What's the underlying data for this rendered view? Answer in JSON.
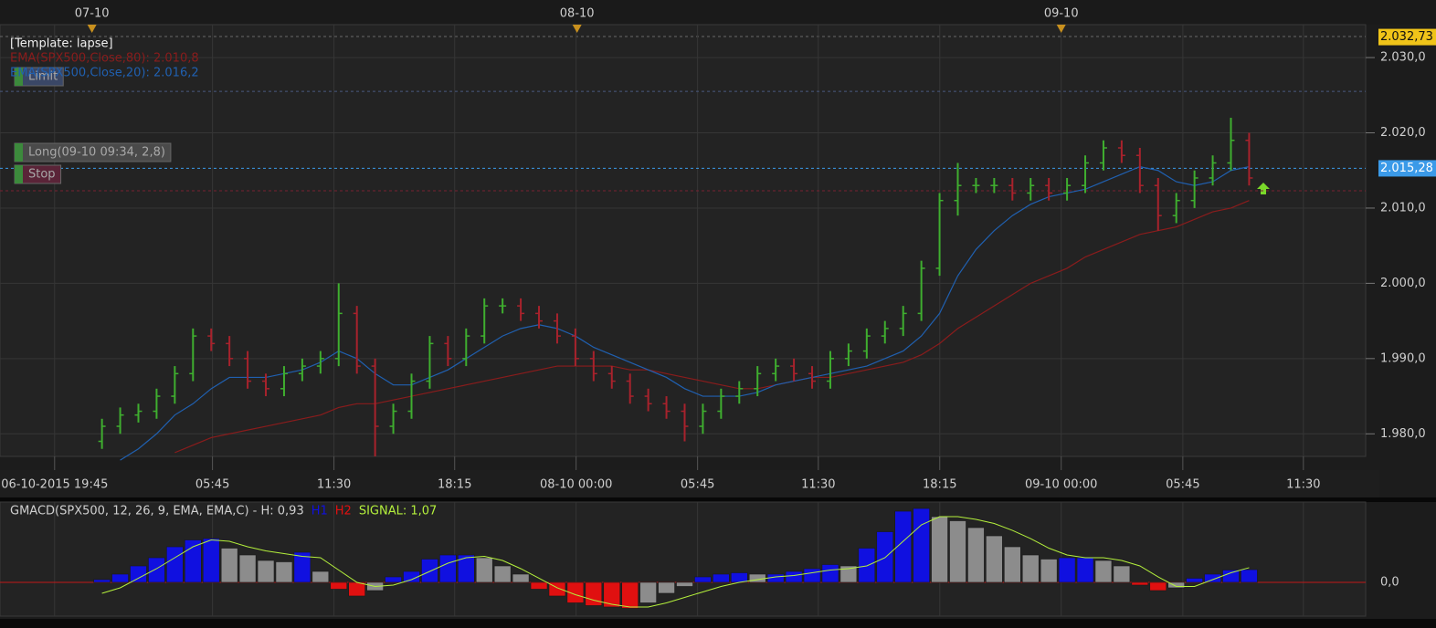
{
  "chart_data": [
    {
      "type": "ohlc",
      "title": "[Template: lapse]",
      "open": [
        1979,
        1981,
        1982.5,
        1983,
        1985,
        1988,
        1993,
        1992,
        1990,
        1987,
        1986,
        1988,
        1989,
        1990,
        1996,
        1989,
        1981,
        1983,
        1987,
        1992,
        1990,
        1993,
        1997,
        1997,
        1996,
        1995,
        1993,
        1990,
        1988,
        1987,
        1985,
        1984,
        1983,
        1981,
        1983,
        1985,
        1986,
        1988,
        1989,
        1988,
        1987,
        1990,
        1991,
        1993,
        1994,
        1996,
        2002,
        2011,
        2013,
        2013,
        2013,
        2012,
        2013,
        2012,
        2013,
        2016,
        2018,
        2017,
        2013,
        2009,
        2011,
        2014,
        2016,
        2019
      ],
      "high": [
        1982,
        1983.5,
        1984,
        1986,
        1989,
        1994,
        1994,
        1993,
        1991,
        1988,
        1989,
        1990,
        1991,
        2000,
        1997,
        1990,
        1984,
        1988,
        1993,
        1993,
        1994,
        1998,
        1998,
        1998,
        1997,
        1996,
        1994,
        1991,
        1989,
        1988,
        1986,
        1985,
        1984,
        1984,
        1986,
        1987,
        1989,
        1990,
        1990,
        1989,
        1991,
        1992,
        1994,
        1995,
        1997,
        2003,
        2012,
        2016,
        2014,
        2014,
        2014,
        2014,
        2014,
        2014,
        2017,
        2019,
        2019,
        2018,
        2014,
        2012,
        2015,
        2017,
        2022,
        2020
      ],
      "low": [
        1978,
        1980,
        1981.5,
        1982,
        1984,
        1987,
        1991,
        1989,
        1986,
        1985,
        1985,
        1987,
        1988,
        1989,
        1988,
        1977,
        1980,
        1982,
        1986,
        1989,
        1989,
        1992,
        1996,
        1995,
        1994,
        1992,
        1989,
        1987,
        1986,
        1984,
        1983,
        1982,
        1979,
        1980,
        1982,
        1984,
        1985,
        1987,
        1987,
        1986,
        1986,
        1989,
        1990,
        1992,
        1993,
        1995,
        2001,
        2009,
        2012,
        2012,
        2011,
        2011,
        2011,
        2011,
        2012,
        2015,
        2016,
        2012,
        2007,
        2008,
        2010,
        2013,
        2015,
        2013
      ],
      "close": [
        1981,
        1982.5,
        1983,
        1985,
        1988,
        1993,
        1992,
        1990,
        1987,
        1986,
        1988,
        1989,
        1990,
        1996,
        1989,
        1981,
        1983,
        1987,
        1992,
        1990,
        1993,
        1997,
        1997,
        1996,
        1995,
        1993,
        1990,
        1988,
        1987,
        1985,
        1984,
        1983,
        1981,
        1983,
        1985,
        1986,
        1988,
        1989,
        1988,
        1987,
        1990,
        1991,
        1993,
        1994,
        1996,
        2002,
        2011,
        2013,
        2013,
        2013,
        2012,
        2013,
        2012,
        2013,
        2016,
        2018,
        2017,
        2013,
        2009,
        2011,
        2014,
        2016,
        2019,
        2014
      ],
      "up_color": "#3fae2f",
      "down_color": "#a8222c",
      "series": [
        {
          "name": "EMA(SPX500,Close,80): 2.010,8",
          "color": "#8a1c1c",
          "values": [
            null,
            null,
            null,
            null,
            1977.5,
            1978.5,
            1979.5,
            1980,
            1980.5,
            1981,
            1981.5,
            1982,
            1982.5,
            1983.5,
            1984,
            1984,
            1984.5,
            1985,
            1985.5,
            1986,
            1986.5,
            1987,
            1987.5,
            1988,
            1988.5,
            1989,
            1989,
            1989,
            1989,
            1988.5,
            1988.5,
            1988,
            1987.5,
            1987,
            1986.5,
            1986,
            1986,
            1986.5,
            1987,
            1987.5,
            1987.5,
            1988,
            1988.5,
            1989,
            1989.5,
            1990.5,
            1992,
            1994,
            1995.5,
            1997,
            1998.5,
            2000,
            2001,
            2002,
            2003.5,
            2004.5,
            2005.5,
            2006.5,
            2007,
            2007.5,
            2008.5,
            2009.5,
            2010,
            2011
          ]
        },
        {
          "name": "EMA(SPX500,Close,20): 2.016,2",
          "color": "#2060b0",
          "values": [
            null,
            1976.5,
            1978,
            1980,
            1982.5,
            1984,
            1986,
            1987.5,
            1987.5,
            1987.5,
            1988,
            1988.5,
            1989.5,
            1991,
            1990,
            1988,
            1986.5,
            1986.5,
            1987.5,
            1988.5,
            1990,
            1991.5,
            1993,
            1994,
            1994.5,
            1994,
            1993,
            1991.5,
            1990.5,
            1989.5,
            1988.5,
            1987.5,
            1986,
            1985,
            1985,
            1985,
            1985.5,
            1986.5,
            1987,
            1987.5,
            1988,
            1988.5,
            1989,
            1990,
            1991,
            1993,
            1996,
            2001,
            2004.5,
            2007,
            2009,
            2010.5,
            2011.5,
            2012,
            2012.5,
            2013.5,
            2014.5,
            2015.5,
            2015,
            2013.5,
            2013,
            2013.5,
            2015,
            2015.5
          ]
        }
      ],
      "xlim": [
        -5.6,
        69.4
      ],
      "xticks": [
        {
          "value": -2.6,
          "label": "06-10-2015 19:45"
        },
        {
          "value": 6.07,
          "label": "05:45"
        },
        {
          "value": 12.74,
          "label": "11:30"
        },
        {
          "value": 19.37,
          "label": "18:15"
        },
        {
          "value": 26.04,
          "label": "08-10 00:00"
        },
        {
          "value": 32.71,
          "label": "05:45"
        },
        {
          "value": 39.34,
          "label": "11:30"
        },
        {
          "value": 46.01,
          "label": "18:15"
        },
        {
          "value": 52.68,
          "label": "09-10 00:00"
        },
        {
          "value": 59.36,
          "label": "05:45"
        },
        {
          "value": 65.98,
          "label": "11:30"
        }
      ],
      "top_xticks": [
        {
          "value": -0.55,
          "label": "07-10"
        },
        {
          "value": 26.09,
          "label": "08-10"
        },
        {
          "value": 52.68,
          "label": "09-10"
        }
      ],
      "ylim": [
        1977,
        2032.8
      ],
      "yticks": [
        {
          "value": 1980,
          "label": "1.980,0"
        },
        {
          "value": 1990,
          "label": "1.990,0"
        },
        {
          "value": 2000,
          "label": "2.000,0"
        },
        {
          "value": 2010,
          "label": "2.010,0"
        },
        {
          "value": 2020,
          "label": "2.020,0"
        },
        {
          "value": 2030,
          "label": "2.030,0"
        }
      ],
      "grid": true,
      "markers": [
        {
          "label": "2.032,73",
          "value": 2032.73,
          "color": "#f0c419"
        },
        {
          "label": "2.015,28",
          "value": 2015.28,
          "color": "#3b9ae8"
        }
      ],
      "orders": [
        {
          "label": "Limit",
          "value": 2025.5,
          "color": "#3a4766"
        },
        {
          "label": "Long(09-10 09:34, 2,8)",
          "value": 2015.28,
          "color": "#4a4a4a"
        },
        {
          "label": "Stop",
          "value": 2012.3,
          "color": "#5a2438"
        }
      ]
    },
    {
      "type": "macd",
      "title": "GMACD(SPX500, 12, 26, 9, EMA, EMA,C) -  H: 0,93",
      "histogram": [
        0.2,
        0.6,
        1.2,
        1.8,
        2.6,
        3.1,
        3.2,
        2.5,
        2.0,
        1.6,
        1.5,
        2.2,
        0.8,
        -0.5,
        -1.0,
        -0.6,
        0.4,
        0.8,
        1.7,
        2.0,
        2.0,
        1.8,
        1.2,
        0.6,
        -0.5,
        -1.0,
        -1.5,
        -1.7,
        -1.8,
        -1.9,
        -1.5,
        -0.8,
        -0.3,
        0.4,
        0.6,
        0.7,
        0.6,
        0.6,
        0.8,
        1.0,
        1.3,
        1.2,
        2.5,
        3.7,
        5.2,
        5.4,
        4.8,
        4.5,
        4.0,
        3.4,
        2.6,
        2.0,
        1.7,
        1.8,
        1.8,
        1.6,
        1.2,
        -0.2,
        -0.6,
        -0.4,
        0.3,
        0.6,
        0.9,
        0.93
      ],
      "legend": [
        {
          "name": "H1",
          "color": "#1010e0"
        },
        {
          "name": "H2",
          "color": "#e01010"
        }
      ],
      "neutral_color": "#8c8c8c",
      "series": [
        {
          "name": "SIGNAL: 1,07",
          "color": "#b4f03c",
          "values": [
            -0.8,
            -0.4,
            0.3,
            1.0,
            1.8,
            2.6,
            3.1,
            3.0,
            2.6,
            2.3,
            2.1,
            1.9,
            1.8,
            0.9,
            0.0,
            -0.3,
            -0.2,
            0.2,
            0.8,
            1.4,
            1.8,
            1.9,
            1.6,
            1.0,
            0.3,
            -0.4,
            -0.9,
            -1.3,
            -1.6,
            -1.8,
            -1.8,
            -1.5,
            -1.1,
            -0.7,
            -0.3,
            0.0,
            0.2,
            0.4,
            0.5,
            0.7,
            0.9,
            1.0,
            1.2,
            1.8,
            3.0,
            4.2,
            4.8,
            4.8,
            4.6,
            4.3,
            3.8,
            3.2,
            2.5,
            2.0,
            1.8,
            1.8,
            1.6,
            1.2,
            0.4,
            -0.3,
            -0.3,
            0.2,
            0.7,
            1.07
          ]
        }
      ],
      "xlim": [
        -5.6,
        69.4
      ],
      "ylim": [
        -2.47,
        5.87
      ],
      "yticks": [
        {
          "value": 0,
          "label": "0,0"
        }
      ]
    }
  ]
}
